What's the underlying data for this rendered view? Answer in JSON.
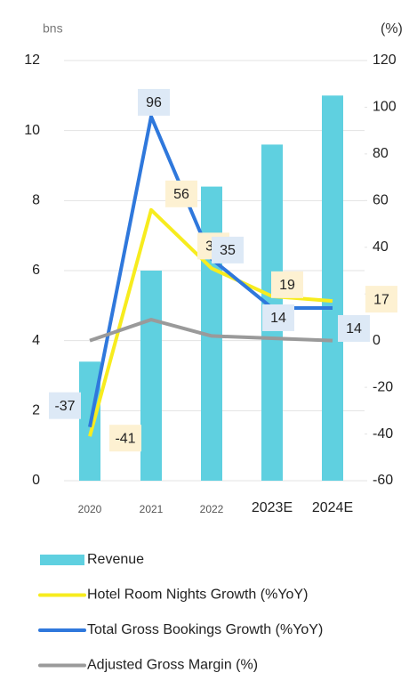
{
  "chart_data": {
    "type": "combo",
    "y_unit_label": "bns",
    "y2_unit_label": "(%)",
    "categories": [
      "2020",
      "2021",
      "2022",
      "2023E",
      "2024E"
    ],
    "ylim": [
      0,
      12
    ],
    "yticks": [
      0,
      2,
      4,
      6,
      8,
      10,
      12
    ],
    "y2lim": [
      -60,
      120
    ],
    "y2ticks": [
      -60,
      -40,
      -20,
      0,
      20,
      40,
      60,
      80,
      100,
      120
    ],
    "grid": true,
    "series": [
      {
        "name": "Revenue",
        "type": "bar",
        "color": "#5fd0e0",
        "values": [
          3.4,
          6.0,
          8.4,
          9.6,
          11.0
        ]
      },
      {
        "name": "Hotel Room Nights Growth (%YoY)",
        "type": "line",
        "axis": "y2",
        "color": "#f7ec1e",
        "values": [
          -41,
          56,
          31,
          19,
          17
        ],
        "labels": true,
        "label_bg": "#fdf1d2"
      },
      {
        "name": "Total Gross Bookings Growth (%YoY)",
        "type": "line",
        "axis": "y2",
        "color": "#2f78dc",
        "values": [
          -37,
          96,
          35,
          14,
          14
        ],
        "labels": true,
        "label_bg": "#dde9f6"
      },
      {
        "name": "Adjusted Gross Margin (%)",
        "type": "line",
        "axis": "y2",
        "color": "#9a9a9a",
        "values": [
          0,
          9,
          2,
          1,
          0
        ]
      }
    ]
  }
}
